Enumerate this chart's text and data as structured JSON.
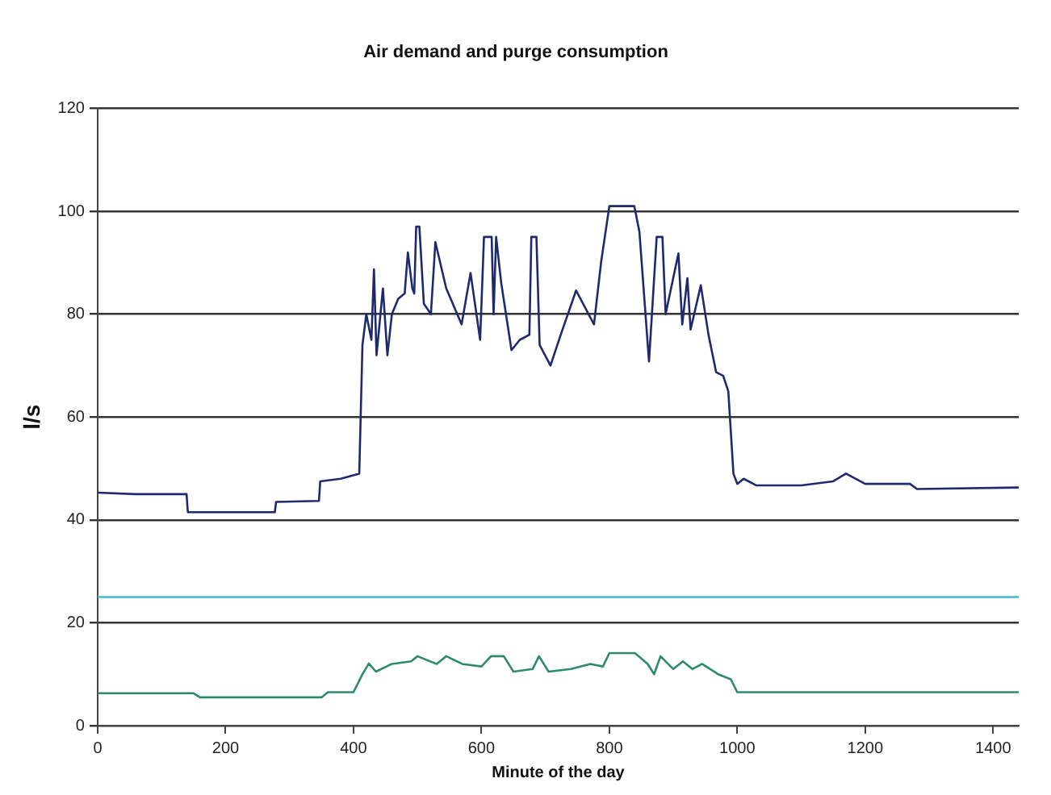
{
  "chart_data": {
    "type": "line",
    "title": "Air demand and purge consumption",
    "xlabel": "Minute of the day",
    "ylabel": "l/s",
    "xlim": [
      0,
      1440
    ],
    "ylim": [
      0,
      120
    ],
    "xticks": [
      0,
      200,
      400,
      600,
      800,
      1000,
      1200,
      1400
    ],
    "yticks": [
      0,
      20,
      40,
      60,
      80,
      100,
      120
    ],
    "grid": "y",
    "legend": false,
    "marker": "none",
    "line_style": "solid",
    "series": [
      {
        "color": "#1f2a6e",
        "x": [
          0,
          60,
          139,
          141,
          200,
          277,
          279,
          346,
          348,
          380,
          409,
          414,
          420,
          428,
          432,
          436,
          446,
          453,
          460,
          470,
          480,
          485,
          492,
          495,
          498,
          503,
          510,
          521,
          528,
          545,
          569,
          583,
          598,
          604,
          616,
          619,
          623,
          631,
          647,
          660,
          675,
          678,
          686,
          691,
          708,
          724,
          748,
          776,
          787,
          800,
          839,
          847,
          862,
          874,
          883,
          888,
          908,
          914,
          922,
          927,
          943,
          955,
          967,
          978,
          986,
          994,
          1000,
          1010,
          1030,
          1100,
          1150,
          1170,
          1200,
          1270,
          1281,
          1440
        ],
        "values": [
          45.3,
          45,
          45,
          41.5,
          41.5,
          41.5,
          43.5,
          43.7,
          47.5,
          48,
          49,
          74,
          80,
          75,
          88.7,
          72,
          85,
          72,
          80,
          83,
          84,
          92,
          85,
          84,
          97,
          97,
          82,
          80,
          94,
          85,
          78,
          88,
          75,
          95,
          95,
          80,
          95,
          86,
          73,
          75,
          76,
          95,
          95,
          74,
          70,
          76,
          84.6,
          78,
          90,
          101,
          101,
          96,
          70.8,
          95,
          95,
          80,
          91.8,
          78,
          87,
          77,
          85.6,
          76,
          68.7,
          68,
          65,
          49,
          47,
          48,
          46.7,
          46.7,
          47.5,
          49,
          47,
          47,
          46,
          46.3
        ]
      },
      {
        "color": "#3fb8d8",
        "x": [
          0,
          1440
        ],
        "values": [
          25,
          25
        ]
      },
      {
        "color": "#2e8b6a",
        "x": [
          0,
          150,
          160,
          350,
          360,
          400,
          414,
          424,
          435,
          460,
          490,
          500,
          530,
          545,
          570,
          600,
          615,
          635,
          650,
          680,
          690,
          705,
          740,
          770,
          790,
          800,
          840,
          860,
          870,
          880,
          900,
          915,
          930,
          945,
          970,
          990,
          1000,
          1440
        ],
        "values": [
          6.3,
          6.3,
          5.5,
          5.5,
          6.5,
          6.5,
          10,
          12.1,
          10.5,
          12,
          12.5,
          13.5,
          12,
          13.5,
          12,
          11.5,
          13.5,
          13.5,
          10.5,
          11,
          13.5,
          10.5,
          11,
          12,
          11.5,
          14.1,
          14.1,
          12,
          10,
          13.5,
          11,
          12.5,
          11,
          12,
          10,
          9,
          6.5,
          6.5
        ]
      }
    ]
  }
}
